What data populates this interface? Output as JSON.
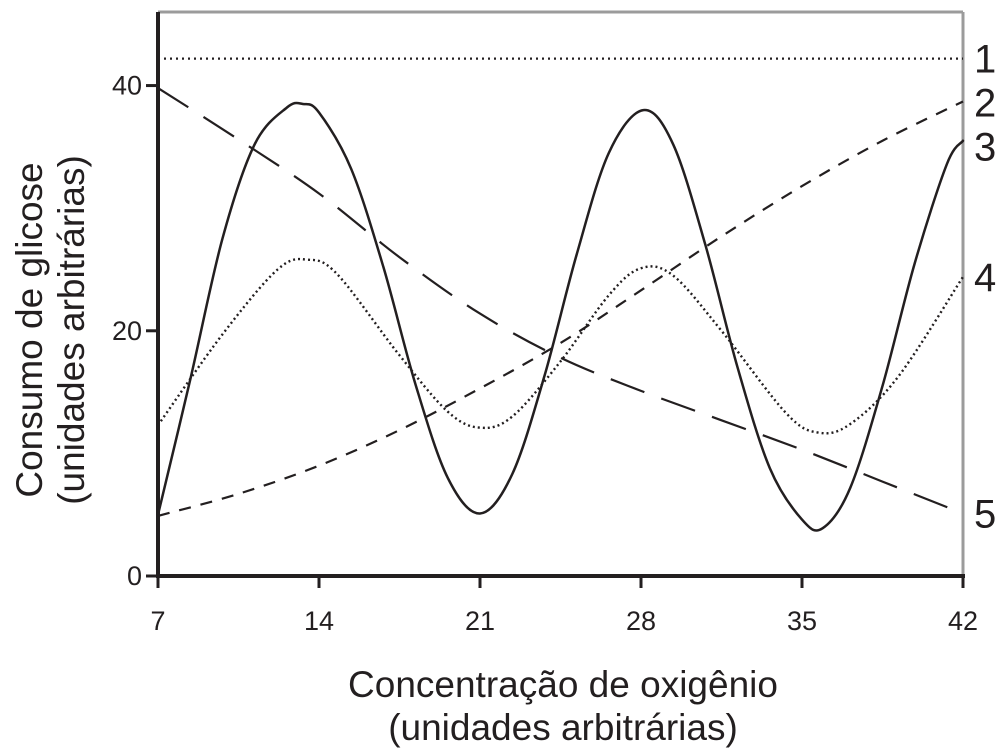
{
  "chart_data": {
    "type": "line",
    "title": "",
    "xlabel": [
      "Concentração de oxigênio",
      "(unidades arbitrárias)"
    ],
    "ylabel": [
      "Consumo de glicose",
      "(unidades arbitrárias)"
    ],
    "xlim": [
      7,
      42
    ],
    "ylim": [
      0,
      46
    ],
    "x_ticks": [
      7,
      14,
      21,
      28,
      35,
      42
    ],
    "x_tick_labels": [
      "7",
      "14",
      "21",
      "28",
      "35",
      "42"
    ],
    "y_ticks": [
      0,
      20,
      40
    ],
    "y_tick_labels": [
      "0",
      "20",
      "40"
    ],
    "grid": false,
    "legend": "none",
    "series": [
      {
        "label": "1",
        "style": "dotted",
        "x": [
          7,
          42
        ],
        "y": [
          42.2,
          42.2
        ]
      },
      {
        "label": "2",
        "style": "short-dash",
        "x": [
          7,
          10.5,
          14,
          17.5,
          21,
          24.5,
          28,
          31.5,
          35,
          38.5,
          42
        ],
        "y": [
          4.9,
          6.7,
          9.0,
          11.9,
          15.3,
          19.0,
          23.3,
          27.7,
          31.8,
          35.5,
          38.7
        ]
      },
      {
        "label": "3",
        "style": "solid",
        "x": [
          7,
          8.4,
          9.8,
          11.2,
          12.6,
          13.3,
          14.0,
          15.4,
          16.8,
          18.2,
          19.6,
          21.0,
          22.4,
          23.8,
          25.2,
          26.6,
          28.1,
          29.4,
          30.8,
          32.2,
          33.6,
          35.0,
          35.9,
          37.1,
          38.5,
          39.9,
          41.3,
          42
        ],
        "y": [
          5.0,
          16.0,
          27.5,
          35.2,
          38.2,
          38.5,
          37.8,
          33.2,
          25.2,
          15.6,
          8.0,
          5.1,
          8.3,
          16.3,
          26.2,
          34.5,
          38.0,
          35.2,
          27.0,
          17.0,
          8.8,
          4.6,
          3.9,
          7.2,
          15.5,
          25.5,
          33.6,
          35.5
        ]
      },
      {
        "label": "4",
        "style": "dense-dotted",
        "x": [
          7,
          9.8,
          12.2,
          13.5,
          14.8,
          17.5,
          19.6,
          21.0,
          22.4,
          24.5,
          26.6,
          28.0,
          29.4,
          31.5,
          34.3,
          35.7,
          37.1,
          39.2,
          42
        ],
        "y": [
          12.3,
          19.7,
          25.0,
          25.8,
          24.6,
          18.0,
          13.4,
          12.1,
          13.0,
          17.5,
          22.9,
          25.1,
          24.5,
          20.0,
          13.3,
          11.7,
          12.4,
          16.3,
          24.4
        ]
      },
      {
        "label": "5",
        "style": "long-dash",
        "x": [
          7,
          10.5,
          14,
          17.5,
          21,
          24.5,
          28,
          31.5,
          35,
          38.5,
          42
        ],
        "y": [
          39.8,
          35.6,
          31.2,
          26.0,
          21.4,
          17.8,
          15.1,
          12.7,
          10.3,
          7.7,
          5.1
        ]
      }
    ]
  }
}
